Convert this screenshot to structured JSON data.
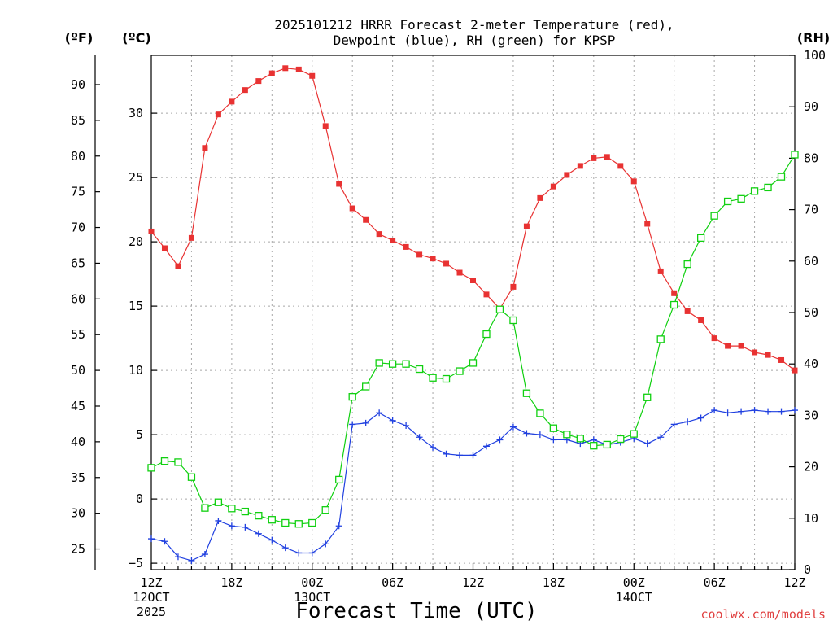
{
  "title_line1": "2025101212 HRRR Forecast 2-meter Temperature (red),",
  "title_line2": "Dewpoint (blue), RH (green) for KPSP",
  "axis_headers": {
    "fahrenheit": "(ºF)",
    "celsius": "(ºC)",
    "rh": "(RH)"
  },
  "xlabel": "Forecast Time (UTC)",
  "credit": "coolwx.com/models",
  "colors": {
    "temperature": "#e83232",
    "dewpoint": "#2040e0",
    "rh": "#10d010",
    "grid": "#a8a8a8"
  },
  "chart_data": {
    "type": "line",
    "x_hours_since_12z_12oct": [
      0,
      1,
      2,
      3,
      4,
      5,
      6,
      7,
      8,
      9,
      10,
      11,
      12,
      13,
      14,
      15,
      16,
      17,
      18,
      19,
      20,
      21,
      22,
      23,
      24,
      25,
      26,
      27,
      28,
      29,
      30,
      31,
      32,
      33,
      34,
      35,
      36,
      37,
      38,
      39,
      40,
      41,
      42,
      43,
      44,
      45,
      46,
      47,
      48
    ],
    "x_tick_labels": [
      {
        "hour": 0,
        "lines": [
          "12Z",
          "12OCT",
          "2025"
        ]
      },
      {
        "hour": 6,
        "lines": [
          "18Z"
        ]
      },
      {
        "hour": 12,
        "lines": [
          "00Z",
          "13OCT"
        ]
      },
      {
        "hour": 18,
        "lines": [
          "06Z"
        ]
      },
      {
        "hour": 24,
        "lines": [
          "12Z"
        ]
      },
      {
        "hour": 30,
        "lines": [
          "18Z"
        ]
      },
      {
        "hour": 36,
        "lines": [
          "00Z",
          "14OCT"
        ]
      },
      {
        "hour": 42,
        "lines": [
          "06Z"
        ]
      },
      {
        "hour": 48,
        "lines": [
          "12Z"
        ]
      }
    ],
    "left_axis_c": {
      "ylim": [
        -5.5,
        34.5
      ],
      "ticks": [
        -5,
        0,
        5,
        10,
        15,
        20,
        25,
        30
      ]
    },
    "left_axis_f": {
      "ticks": [
        25,
        30,
        35,
        40,
        45,
        50,
        55,
        60,
        65,
        70,
        75,
        80,
        85,
        90
      ]
    },
    "right_axis_rh": {
      "ylim": [
        0,
        100
      ],
      "ticks": [
        0,
        10,
        20,
        30,
        40,
        50,
        60,
        70,
        80,
        90,
        100
      ]
    },
    "grid": true,
    "series": [
      {
        "name": "Temperature",
        "axis": "celsius",
        "marker": "filled-square",
        "values": [
          20.8,
          19.5,
          18.1,
          20.3,
          27.3,
          29.9,
          30.9,
          31.8,
          32.5,
          33.1,
          33.5,
          33.4,
          32.9,
          29.0,
          24.5,
          22.6,
          21.7,
          20.6,
          20.1,
          19.6,
          19.0,
          18.7,
          18.3,
          17.6,
          17.0,
          15.9,
          14.8,
          16.5,
          21.2,
          23.4,
          24.3,
          25.2,
          25.9,
          26.5,
          26.6,
          25.9,
          24.7,
          21.4,
          17.7,
          16.0,
          14.6,
          13.9,
          12.5,
          11.9,
          11.9,
          11.4,
          11.2,
          10.8,
          10.0
        ]
      },
      {
        "name": "Dewpoint",
        "axis": "celsius",
        "marker": "plus",
        "values": [
          -3.1,
          -3.3,
          -4.5,
          -4.8,
          -4.3,
          -1.7,
          -2.1,
          -2.2,
          -2.7,
          -3.2,
          -3.8,
          -4.2,
          -4.2,
          -3.5,
          -2.1,
          5.8,
          5.9,
          6.7,
          6.1,
          5.7,
          4.8,
          4.0,
          3.5,
          3.4,
          3.4,
          4.1,
          4.6,
          5.6,
          5.1,
          5.0,
          4.6,
          4.6,
          4.3,
          4.6,
          4.2,
          4.4,
          4.7,
          4.3,
          4.8,
          5.8,
          6.0,
          6.3,
          6.9,
          6.7,
          6.8,
          6.9,
          6.8,
          6.8,
          6.9
        ]
      },
      {
        "name": "RH",
        "axis": "rh",
        "marker": "open-square",
        "values": [
          19.8,
          21.1,
          20.9,
          18.0,
          12.0,
          13.1,
          11.9,
          11.3,
          10.5,
          9.7,
          9.1,
          8.9,
          9.1,
          11.6,
          17.5,
          33.6,
          35.6,
          40.2,
          40.0,
          40.0,
          39.0,
          37.3,
          37.1,
          38.6,
          40.2,
          45.8,
          50.6,
          48.5,
          34.3,
          30.4,
          27.5,
          26.3,
          25.5,
          24.1,
          24.3,
          25.4,
          26.4,
          33.5,
          44.8,
          51.5,
          59.4,
          64.5,
          68.8,
          71.6,
          72.1,
          73.6,
          74.3,
          76.4,
          80.7
        ]
      }
    ]
  }
}
